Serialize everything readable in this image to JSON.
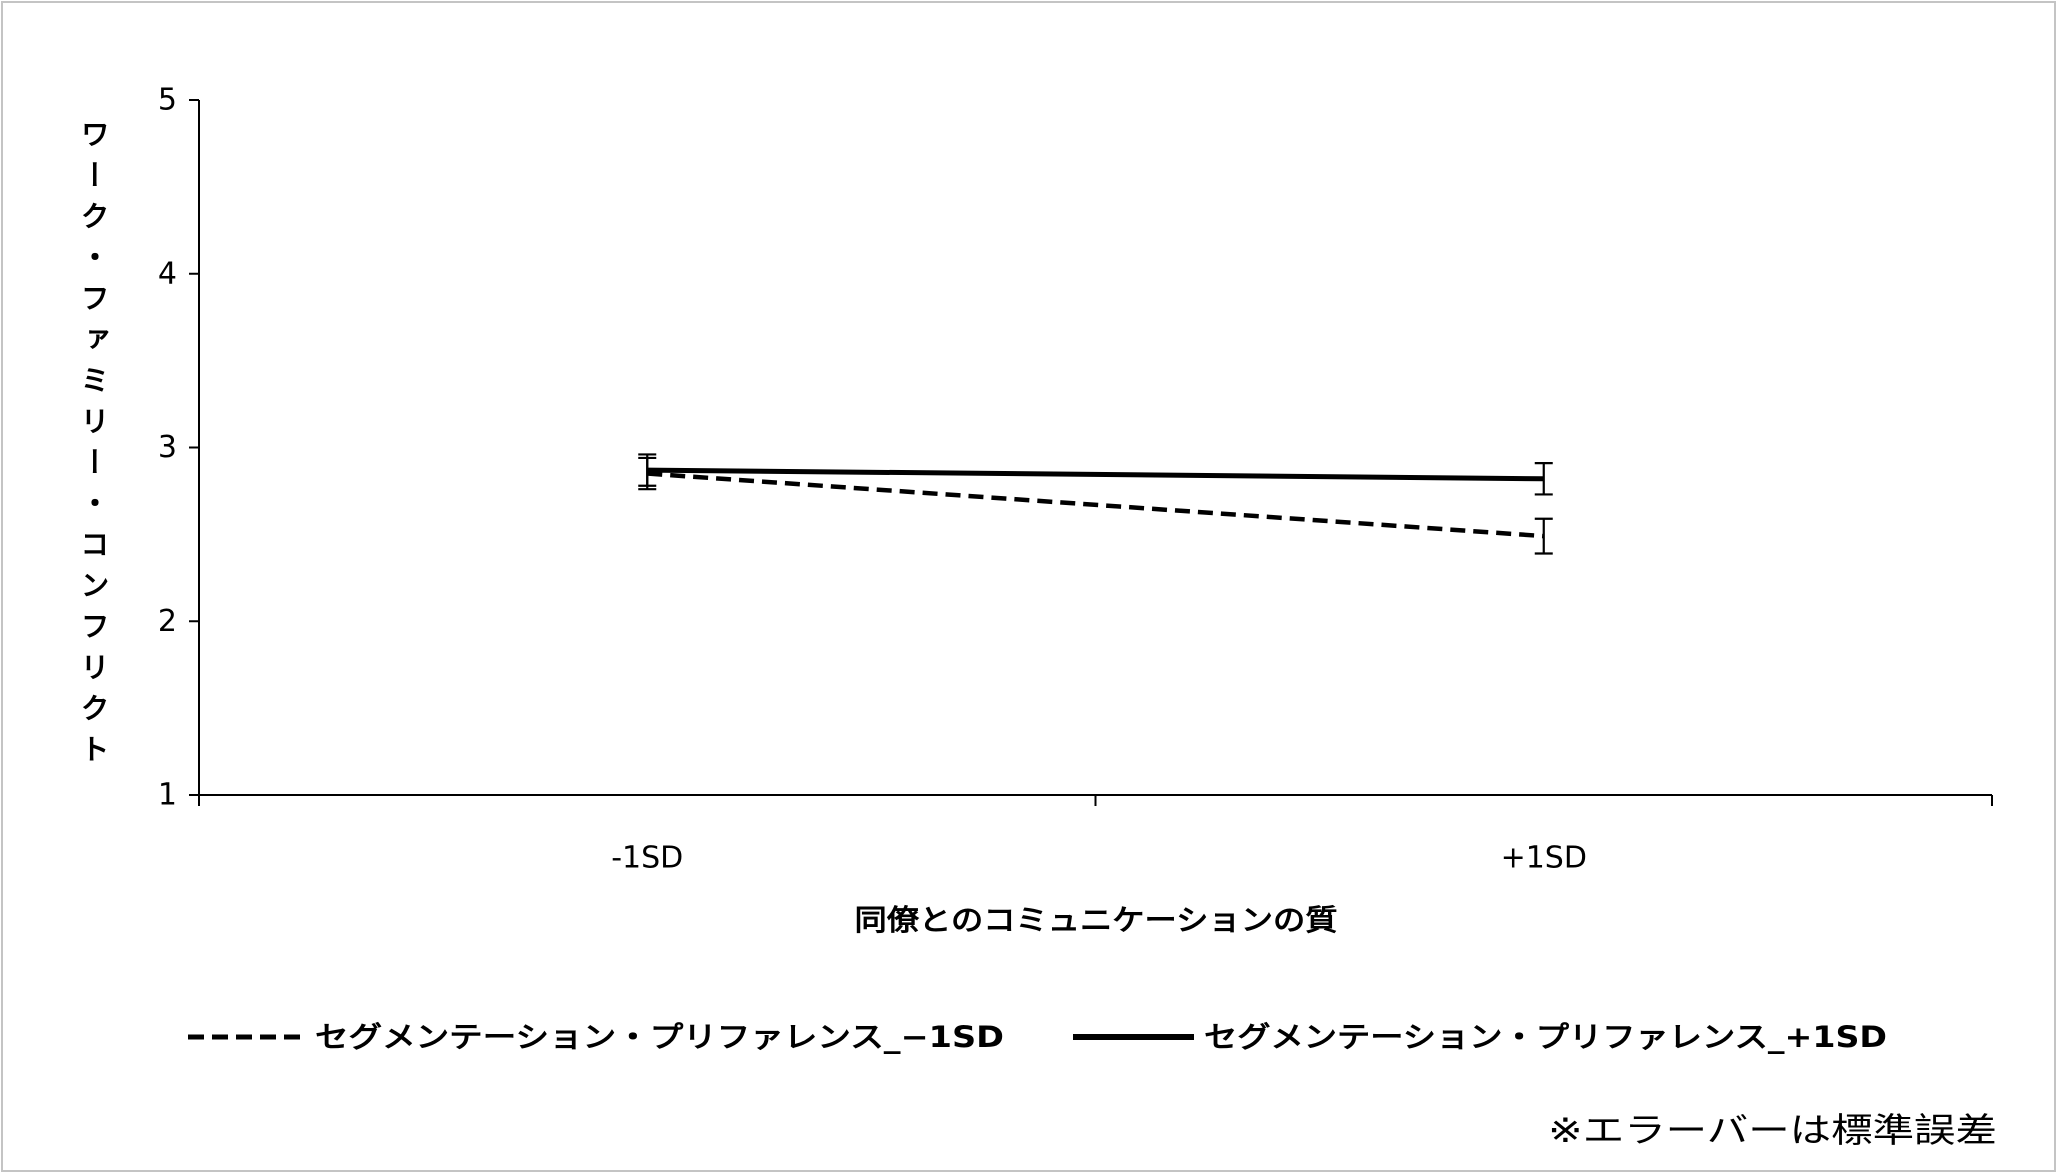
{
  "chart_data": {
    "type": "line",
    "categories": [
      "-1SD",
      "+1SD"
    ],
    "series": [
      {
        "name": "セグメンテーション・プリファレンス_−1SD",
        "values": [
          2.85,
          2.49
        ],
        "errors": [
          0.09,
          0.1
        ],
        "line_style": "dashed",
        "color": "#000000"
      },
      {
        "name": "セグメンテーション・プリファレンス_+1SD",
        "values": [
          2.87,
          2.82
        ],
        "errors": [
          0.09,
          0.09
        ],
        "line_style": "solid",
        "color": "#000000"
      }
    ],
    "xlabel": "同僚とのコミュニケーションの質",
    "ylabel": "ワーク・ファミリー・コンフリクト",
    "ylim": [
      1,
      5
    ],
    "yticks": [
      1,
      2,
      3,
      4,
      5
    ],
    "error_bars": true,
    "grid": false,
    "legend_position": "bottom",
    "note": "※エラーバーは標準誤差"
  }
}
